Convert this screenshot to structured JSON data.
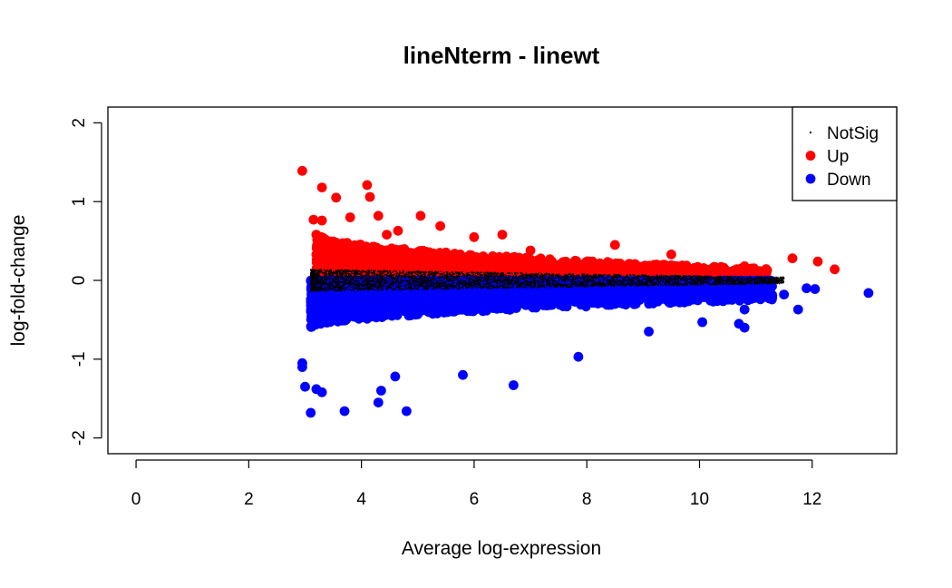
{
  "chart_data": {
    "type": "scatter",
    "title": "lineNterm - linewt",
    "xlabel": "Average log-expression",
    "ylabel": "log-fold-change",
    "xlim": [
      -0.5,
      13.5
    ],
    "ylim": [
      -2.2,
      2.2
    ],
    "xticks": [
      "0",
      "2",
      "4",
      "6",
      "8",
      "10",
      "12"
    ],
    "yticks": [
      "-2",
      "-1",
      "0",
      "1",
      "2"
    ],
    "legend": {
      "position": "top-right",
      "entries": [
        "NotSig",
        "Up",
        "Down"
      ]
    },
    "colors": {
      "NotSig": "#000000",
      "Up": "#ff0000",
      "Down": "#0000ff"
    },
    "series": [
      {
        "name": "Up",
        "color": "#ff0000",
        "points": [
          [
            2.95,
            1.39
          ],
          [
            3.3,
            1.18
          ],
          [
            3.55,
            1.05
          ],
          [
            4.1,
            1.21
          ],
          [
            4.15,
            1.06
          ],
          [
            3.15,
            0.77
          ],
          [
            3.3,
            0.76
          ],
          [
            3.8,
            0.8
          ],
          [
            4.3,
            0.82
          ],
          [
            4.65,
            0.63
          ],
          [
            5.05,
            0.82
          ],
          [
            5.4,
            0.69
          ],
          [
            4.45,
            0.58
          ],
          [
            3.2,
            0.58
          ],
          [
            3.2,
            0.33
          ],
          [
            8.5,
            0.45
          ],
          [
            9.5,
            0.33
          ],
          [
            10.8,
            0.18
          ],
          [
            11.2,
            0.13
          ],
          [
            11.65,
            0.28
          ],
          [
            12.1,
            0.24
          ],
          [
            12.4,
            0.14
          ],
          [
            6.0,
            0.55
          ],
          [
            6.5,
            0.58
          ],
          [
            7.0,
            0.38
          ]
        ]
      },
      {
        "name": "Down",
        "color": "#0000ff",
        "points": [
          [
            3.1,
            -1.68
          ],
          [
            3.0,
            -1.35
          ],
          [
            2.95,
            -1.1
          ],
          [
            2.95,
            -1.05
          ],
          [
            3.2,
            -1.38
          ],
          [
            3.3,
            -1.42
          ],
          [
            3.7,
            -1.66
          ],
          [
            4.3,
            -1.55
          ],
          [
            4.35,
            -1.4
          ],
          [
            4.8,
            -1.66
          ],
          [
            4.6,
            -1.22
          ],
          [
            5.8,
            -1.2
          ],
          [
            6.7,
            -1.33
          ],
          [
            7.85,
            -0.97
          ],
          [
            9.1,
            -0.65
          ],
          [
            10.05,
            -0.53
          ],
          [
            10.7,
            -0.55
          ],
          [
            10.8,
            -0.6
          ],
          [
            11.5,
            -0.18
          ],
          [
            11.75,
            -0.37
          ],
          [
            11.9,
            -0.1
          ],
          [
            12.05,
            -0.11
          ],
          [
            13.0,
            -0.16
          ],
          [
            10.9,
            -0.18
          ],
          [
            10.8,
            -0.37
          ]
        ]
      }
    ],
    "density": [
      {
        "series": "Up",
        "xmin": 3.2,
        "xmax": 11.2,
        "y_near": 0.0,
        "y_far": 0.15,
        "y_far_start": 0.6,
        "count": 2400
      },
      {
        "series": "NotSig",
        "xmin": 3.1,
        "xmax": 11.5,
        "y_half_start": 0.14,
        "y_half_end": 0.04,
        "count": 4200
      },
      {
        "series": "Down",
        "xmin": 3.1,
        "xmax": 11.3,
        "y_near": 0.0,
        "y_far": -0.25,
        "y_far_start": -0.62,
        "count": 3200
      }
    ]
  }
}
